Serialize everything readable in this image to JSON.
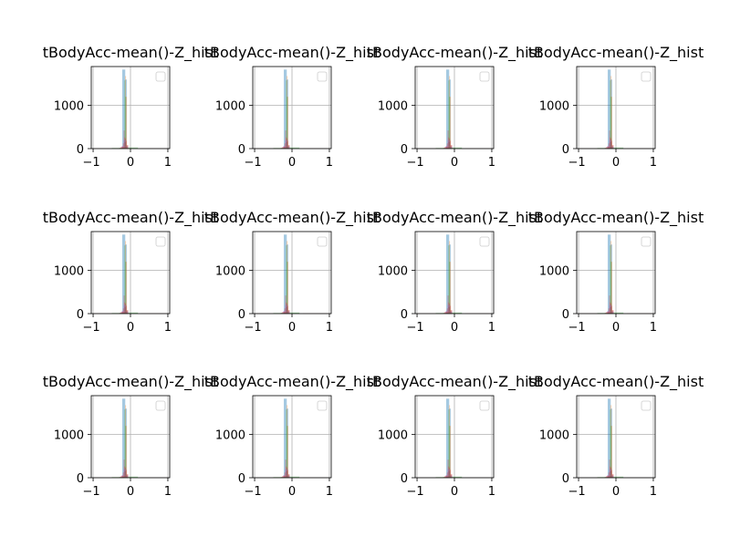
{
  "figure": {
    "background": "#ffffff"
  },
  "subplot_title": "tBodyAcc-mean()-Z_hist",
  "colors": {
    "blue": "#1f77b4",
    "orange": "#ff7f0e",
    "green": "#2ca02c",
    "red": "#d62728",
    "purple": "#9467bd",
    "brown": "#8c564b",
    "grid": "#b0b0b0",
    "axes": "#000000"
  },
  "chart_data": {
    "type": "bar",
    "layout": "3x4 grid of identical histograms",
    "title": "tBodyAcc-mean()-Z_hist",
    "xlabel": "",
    "ylabel": "",
    "xlim": [
      -1.05,
      1.05
    ],
    "ylim": [
      0,
      1900
    ],
    "xticks": [
      -1,
      0,
      1
    ],
    "yticks": [
      0,
      1000
    ],
    "grid": true,
    "legend": "top-right, empty",
    "bar_alpha": 0.4,
    "series": [
      {
        "color_key": "blue",
        "bins": [
          [
            -0.22,
            -0.14,
            1830
          ],
          [
            -0.14,
            -0.1,
            1600
          ]
        ]
      },
      {
        "color_key": "orange",
        "bins": [
          [
            -0.14,
            -0.12,
            1680
          ],
          [
            -0.12,
            -0.1,
            1200
          ],
          [
            -0.22,
            -0.14,
            50
          ]
        ]
      },
      {
        "color_key": "green",
        "bins": [
          [
            -0.16,
            -0.14,
            1580
          ],
          [
            -0.14,
            -0.12,
            1200
          ],
          [
            -0.12,
            0.2,
            25
          ],
          [
            -0.5,
            -0.16,
            15
          ]
        ]
      },
      {
        "color_key": "red",
        "bins": [
          [
            -0.18,
            -0.16,
            420
          ],
          [
            -0.16,
            -0.14,
            260
          ],
          [
            -0.14,
            -0.12,
            230
          ],
          [
            -0.12,
            -0.1,
            180
          ],
          [
            -0.2,
            -0.18,
            120
          ],
          [
            -0.1,
            -0.06,
            80
          ],
          [
            -0.26,
            -0.2,
            40
          ]
        ]
      },
      {
        "color_key": "purple",
        "bins": [
          [
            -0.18,
            -0.12,
            200
          ],
          [
            -0.24,
            -0.18,
            60
          ],
          [
            -0.12,
            -0.06,
            50
          ]
        ]
      },
      {
        "color_key": "brown",
        "bins": [
          [
            -0.16,
            -0.12,
            150
          ],
          [
            -0.12,
            -0.08,
            70
          ],
          [
            -0.3,
            -0.16,
            20
          ],
          [
            -1.0,
            -0.3,
            8
          ],
          [
            0.3,
            1.0,
            8
          ]
        ]
      }
    ]
  }
}
